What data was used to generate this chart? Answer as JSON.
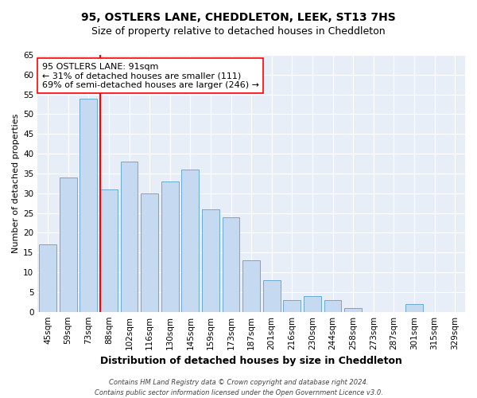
{
  "title": "95, OSTLERS LANE, CHEDDLETON, LEEK, ST13 7HS",
  "subtitle": "Size of property relative to detached houses in Cheddleton",
  "xlabel": "Distribution of detached houses by size in Cheddleton",
  "ylabel": "Number of detached properties",
  "categories": [
    "45sqm",
    "59sqm",
    "73sqm",
    "88sqm",
    "102sqm",
    "116sqm",
    "130sqm",
    "145sqm",
    "159sqm",
    "173sqm",
    "187sqm",
    "201sqm",
    "216sqm",
    "230sqm",
    "244sqm",
    "258sqm",
    "273sqm",
    "287sqm",
    "301sqm",
    "315sqm",
    "329sqm"
  ],
  "values": [
    17,
    34,
    54,
    31,
    38,
    30,
    33,
    36,
    26,
    24,
    13,
    8,
    3,
    4,
    3,
    1,
    0,
    0,
    2,
    0,
    0
  ],
  "bar_color": "#c5d9f0",
  "bar_edge_color": "#6aaad4",
  "vline_color": "red",
  "annotation_line1": "95 OSTLERS LANE: 91sqm",
  "annotation_line2": "← 31% of detached houses are smaller (111)",
  "annotation_line3": "69% of semi-detached houses are larger (246) →",
  "annotation_box_color": "white",
  "annotation_box_edge": "red",
  "ylim": [
    0,
    65
  ],
  "yticks": [
    0,
    5,
    10,
    15,
    20,
    25,
    30,
    35,
    40,
    45,
    50,
    55,
    60,
    65
  ],
  "background_color": "#e8eef8",
  "footer_line1": "Contains HM Land Registry data © Crown copyright and database right 2024.",
  "footer_line2": "Contains public sector information licensed under the Open Government Licence v3.0.",
  "title_fontsize": 10,
  "subtitle_fontsize": 9,
  "xlabel_fontsize": 9,
  "ylabel_fontsize": 8,
  "tick_fontsize": 7.5,
  "annotation_fontsize": 8,
  "footer_fontsize": 6
}
